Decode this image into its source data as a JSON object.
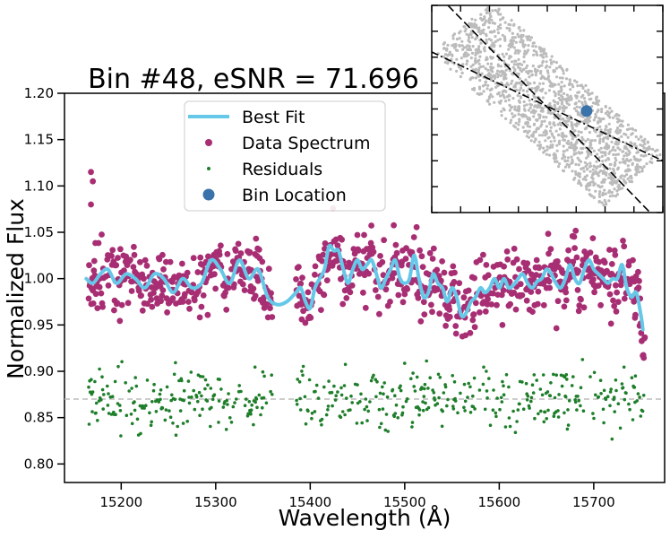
{
  "chart_data": [
    {
      "type": "scatter",
      "title": "Bin #48, eSNR = 71.696",
      "xlabel": "Wavelength (Å)",
      "ylabel": "Normalized Flux",
      "xlim": [
        15140,
        15775
      ],
      "ylim": [
        0.78,
        1.2
      ],
      "xticks": [
        15200,
        15300,
        15400,
        15500,
        15600,
        15700
      ],
      "yticks": [
        0.8,
        0.85,
        0.9,
        0.95,
        1.0,
        1.05,
        1.1,
        1.15,
        1.2
      ],
      "ytick_labels": [
        "0.80",
        "0.85",
        "0.90",
        "0.95",
        "1.00",
        "1.05",
        "1.10",
        "1.15",
        "1.20"
      ],
      "residual_baseline": 0.87,
      "spectrum_segments": [
        [
          15165,
          15360
        ],
        [
          15385,
          15755
        ]
      ],
      "data_spectrum_outliers": [
        {
          "x": 15168,
          "y": 1.115
        },
        {
          "x": 15170,
          "y": 1.105
        },
        {
          "x": 15168,
          "y": 1.08
        },
        {
          "x": 15400,
          "y": 0.975
        }
      ],
      "best_fit": {
        "x": [
          15163,
          15170,
          15178,
          15186,
          15195,
          15205,
          15215,
          15225,
          15235,
          15245,
          15255,
          15265,
          15275,
          15285,
          15295,
          15305,
          15315,
          15325,
          15335,
          15345,
          15355,
          15365,
          15375,
          15385,
          15390,
          15395,
          15400,
          15405,
          15410,
          15415,
          15420,
          15425,
          15430,
          15435,
          15440,
          15445,
          15450,
          15455,
          15460,
          15465,
          15470,
          15475,
          15480,
          15485,
          15490,
          15495,
          15500,
          15505,
          15510,
          15515,
          15520,
          15525,
          15530,
          15535,
          15540,
          15545,
          15550,
          15555,
          15560,
          15565,
          15570,
          15575,
          15580,
          15585,
          15590,
          15595,
          15600,
          15605,
          15610,
          15615,
          15620,
          15625,
          15630,
          15635,
          15640,
          15645,
          15650,
          15655,
          15660,
          15665,
          15670,
          15675,
          15680,
          15685,
          15690,
          15695,
          15700,
          15705,
          15710,
          15715,
          15720,
          15725,
          15730,
          15735,
          15740,
          15745,
          15750,
          15752
        ],
        "y": [
          1.0,
          0.995,
          1.005,
          1.01,
          0.995,
          1.005,
          1.0,
          0.99,
          1.005,
          1.0,
          0.985,
          1.0,
          0.99,
          0.995,
          1.02,
          1.01,
          0.995,
          1.02,
          1.0,
          1.01,
          0.98,
          0.972,
          0.975,
          0.985,
          0.99,
          0.975,
          0.968,
          0.99,
          1.0,
          1.01,
          1.035,
          1.03,
          1.03,
          1.01,
          0.995,
          1.01,
          1.02,
          1.01,
          1.015,
          1.02,
          1.005,
          0.99,
          1.0,
          1.01,
          1.02,
          1.0,
          0.995,
          1.0,
          1.025,
          1.0,
          0.98,
          0.985,
          1.005,
          0.995,
          0.99,
          0.975,
          0.99,
          0.98,
          0.96,
          0.963,
          0.975,
          0.98,
          0.99,
          0.985,
          0.99,
          1.0,
          0.99,
          1.0,
          0.99,
          0.993,
          1.0,
          1.005,
          0.995,
          0.99,
          0.997,
          1.0,
          1.01,
          1.005,
          0.995,
          0.99,
          1.0,
          1.015,
          1.0,
          0.995,
          1.01,
          1.02,
          1.01,
          1.005,
          1.0,
          0.995,
          1.0,
          1.0,
          1.015,
          0.99,
          0.98,
          0.985,
          0.96,
          0.945
        ]
      },
      "legend": {
        "placement": "top-center",
        "entries": [
          {
            "label": "Best Fit",
            "marker": "line",
            "color": "#66c8e8"
          },
          {
            "label": "Data Spectrum",
            "marker": "dot",
            "color": "#a82e74"
          },
          {
            "label": "Residuals",
            "marker": "small-dot",
            "color": "#1e7e2a"
          },
          {
            "label": "Bin Location",
            "marker": "large-dot",
            "color": "#3a72aa"
          }
        ]
      },
      "colors": {
        "best_fit": "#66c8e8",
        "data_spectrum": "#a82e74",
        "residuals": "#1e7e2a",
        "baseline": "#bbbbbb",
        "background": "#ffffff"
      }
    },
    {
      "type": "scatter",
      "title": "",
      "xlabel": "",
      "ylabel": "",
      "xlim": [
        -1,
        1
      ],
      "ylim": [
        -1,
        1
      ],
      "point_cloud": {
        "orientation": "diagonal, top-left to bottom-right",
        "color": "#bbbbbb"
      },
      "bin_location": {
        "x": 0.34,
        "y": -0.02,
        "color": "#3a72aa"
      },
      "lines": [
        {
          "style": "dashed",
          "points": [
            [
              -0.86,
              1.0
            ],
            [
              0.89,
              -1.0
            ]
          ]
        },
        {
          "style": "dash-dot",
          "points": [
            [
              -1.0,
              0.55
            ],
            [
              1.0,
              -0.5
            ]
          ]
        }
      ]
    }
  ]
}
